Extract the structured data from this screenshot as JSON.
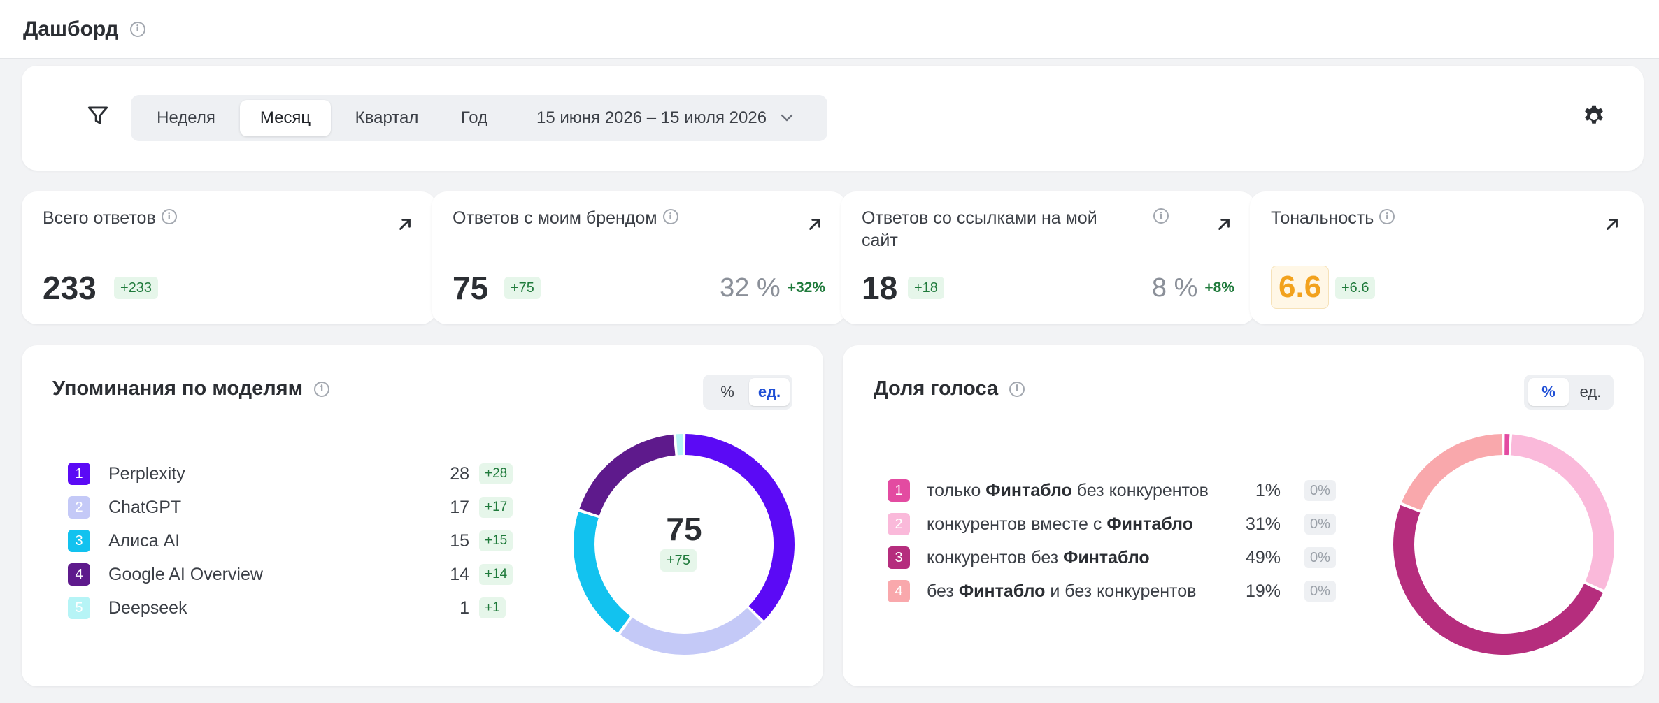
{
  "header": {
    "title": "Дашборд"
  },
  "filters": {
    "periods": [
      "Неделя",
      "Месяц",
      "Квартал",
      "Год"
    ],
    "active_period": "Месяц",
    "date_range": "15 июня 2026 – 15 июля 2026"
  },
  "metrics": [
    {
      "title": "Всего ответов",
      "value": "233",
      "delta": "+233"
    },
    {
      "title": "Ответов с моим брендом",
      "value": "75",
      "delta": "+75",
      "pct": "32 %",
      "pct_delta": "+32%"
    },
    {
      "title_line1": "Ответов со ссылками на мой",
      "title_line2": "сайт",
      "value": "18",
      "delta": "+18",
      "pct": "8 %",
      "pct_delta": "+8%"
    },
    {
      "title": "Тональность",
      "value": "6.6",
      "delta": "+6.6"
    }
  ],
  "mentions": {
    "title": "Упоминания по моделям",
    "toggle": [
      "%",
      "ед."
    ],
    "active_toggle": "ед.",
    "total": "75",
    "total_delta": "+75",
    "items": [
      {
        "rank": "1",
        "name": "Perplexity",
        "count": 28,
        "delta": "+28",
        "color": "#5b0af5"
      },
      {
        "rank": "2",
        "name": "ChatGPT",
        "count": 17,
        "delta": "+17",
        "color": "#c4c9f7"
      },
      {
        "rank": "3",
        "name": "Алиса AI",
        "count": 15,
        "delta": "+15",
        "color": "#12c2ef"
      },
      {
        "rank": "4",
        "name": "Google AI Overview",
        "count": 14,
        "delta": "+14",
        "color": "#5e1a8c"
      },
      {
        "rank": "5",
        "name": "Deepseek",
        "count": 1,
        "delta": "+1",
        "color": "#b6f4f6"
      }
    ]
  },
  "voice_share": {
    "title": "Доля голоса",
    "toggle": [
      "%",
      "ед."
    ],
    "active_toggle": "%",
    "brand": "Финтабло",
    "items": [
      {
        "rank": "1",
        "before": "только ",
        "brand": "Финтабло",
        "after": " без конкурентов",
        "value": 1,
        "pct": "1%",
        "delta": "0%",
        "color": "#e34ba1"
      },
      {
        "rank": "2",
        "before": "конкурентов вместе с ",
        "brand": "Финтабло",
        "after": "",
        "value": 31,
        "pct": "31%",
        "delta": "0%",
        "color": "#fab9da"
      },
      {
        "rank": "3",
        "before": "конкурентов без ",
        "brand": "Финтабло",
        "after": "",
        "value": 49,
        "pct": "49%",
        "delta": "0%",
        "color": "#b52d7d"
      },
      {
        "rank": "4",
        "before": "без ",
        "brand": "Финтабло",
        "after": " и без конкурентов",
        "value": 19,
        "pct": "19%",
        "delta": "0%",
        "color": "#f9a8ac"
      }
    ]
  }
}
